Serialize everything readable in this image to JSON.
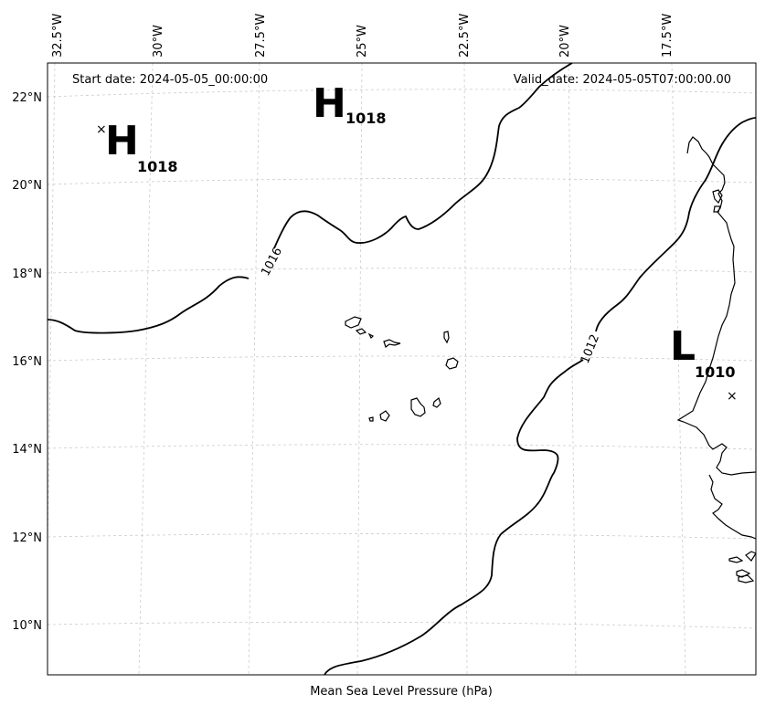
{
  "map": {
    "start_date": "Start date: 2024-05-05_00:00:00",
    "valid_date": "Valid_date: 2024-05-05T07:00:00.00",
    "caption": "Mean Sea Level Pressure (hPa)",
    "lon_ticks": [
      "32.5°W",
      "30°W",
      "27.5°W",
      "25°W",
      "22.5°W",
      "20°W",
      "17.5°W"
    ],
    "lat_ticks": [
      "22°N",
      "20°N",
      "18°N",
      "16°N",
      "14°N",
      "12°N",
      "10°N"
    ],
    "pressure_centers": [
      {
        "type": "H",
        "value": "1018"
      },
      {
        "type": "H",
        "value": "1018"
      },
      {
        "type": "L",
        "value": "1010"
      }
    ],
    "isobars": [
      {
        "level": 1016,
        "label": "1016"
      },
      {
        "level": 1012,
        "label": "1012"
      }
    ],
    "colors": {
      "isobar": "#000000",
      "grid": "#cccccc",
      "background": "#ffffff"
    }
  }
}
